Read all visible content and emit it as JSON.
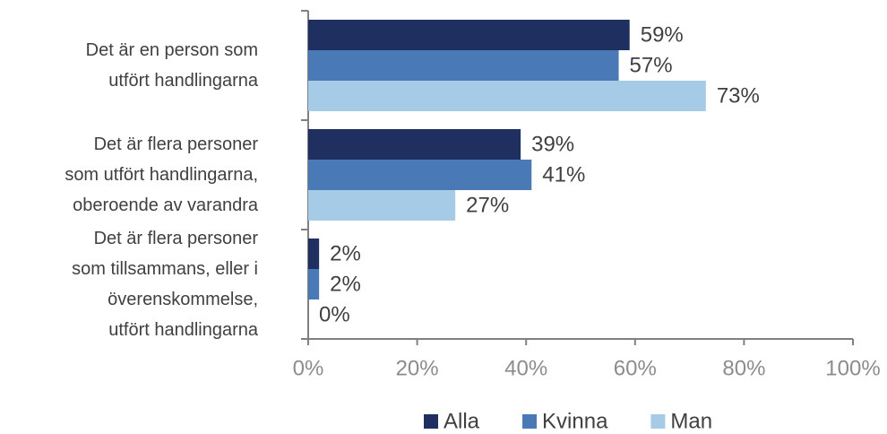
{
  "chart_data": {
    "type": "hbar",
    "categories": [
      "Det är en person som\nutfört handlingarna",
      "Det är flera personer\nsom utfört handlingarna,\noberoende av varandra",
      "Det är flera personer\nsom tillsammans, eller i\növerenskommelse,\nutfört handlingarna"
    ],
    "series": [
      {
        "name": "Alla",
        "color": "#1f3060",
        "values": [
          59,
          39,
          2
        ],
        "value_labels": [
          "59%",
          "39%",
          "2%"
        ]
      },
      {
        "name": "Kvinna",
        "color": "#4a7ab5",
        "values": [
          57,
          41,
          2
        ],
        "value_labels": [
          "57%",
          "41%",
          "2%"
        ]
      },
      {
        "name": "Man",
        "color": "#a6cbe6",
        "values": [
          73,
          27,
          0
        ],
        "value_labels": [
          "73%",
          "27%",
          "0%"
        ]
      }
    ],
    "xlim": [
      0,
      100
    ],
    "xticks": [
      {
        "value": 0,
        "label": "0%"
      },
      {
        "value": 20,
        "label": "20%"
      },
      {
        "value": 40,
        "label": "40%"
      },
      {
        "value": 60,
        "label": "60%"
      },
      {
        "value": 80,
        "label": "80%"
      },
      {
        "value": 100,
        "label": "100%"
      }
    ],
    "legend": "bottom"
  }
}
